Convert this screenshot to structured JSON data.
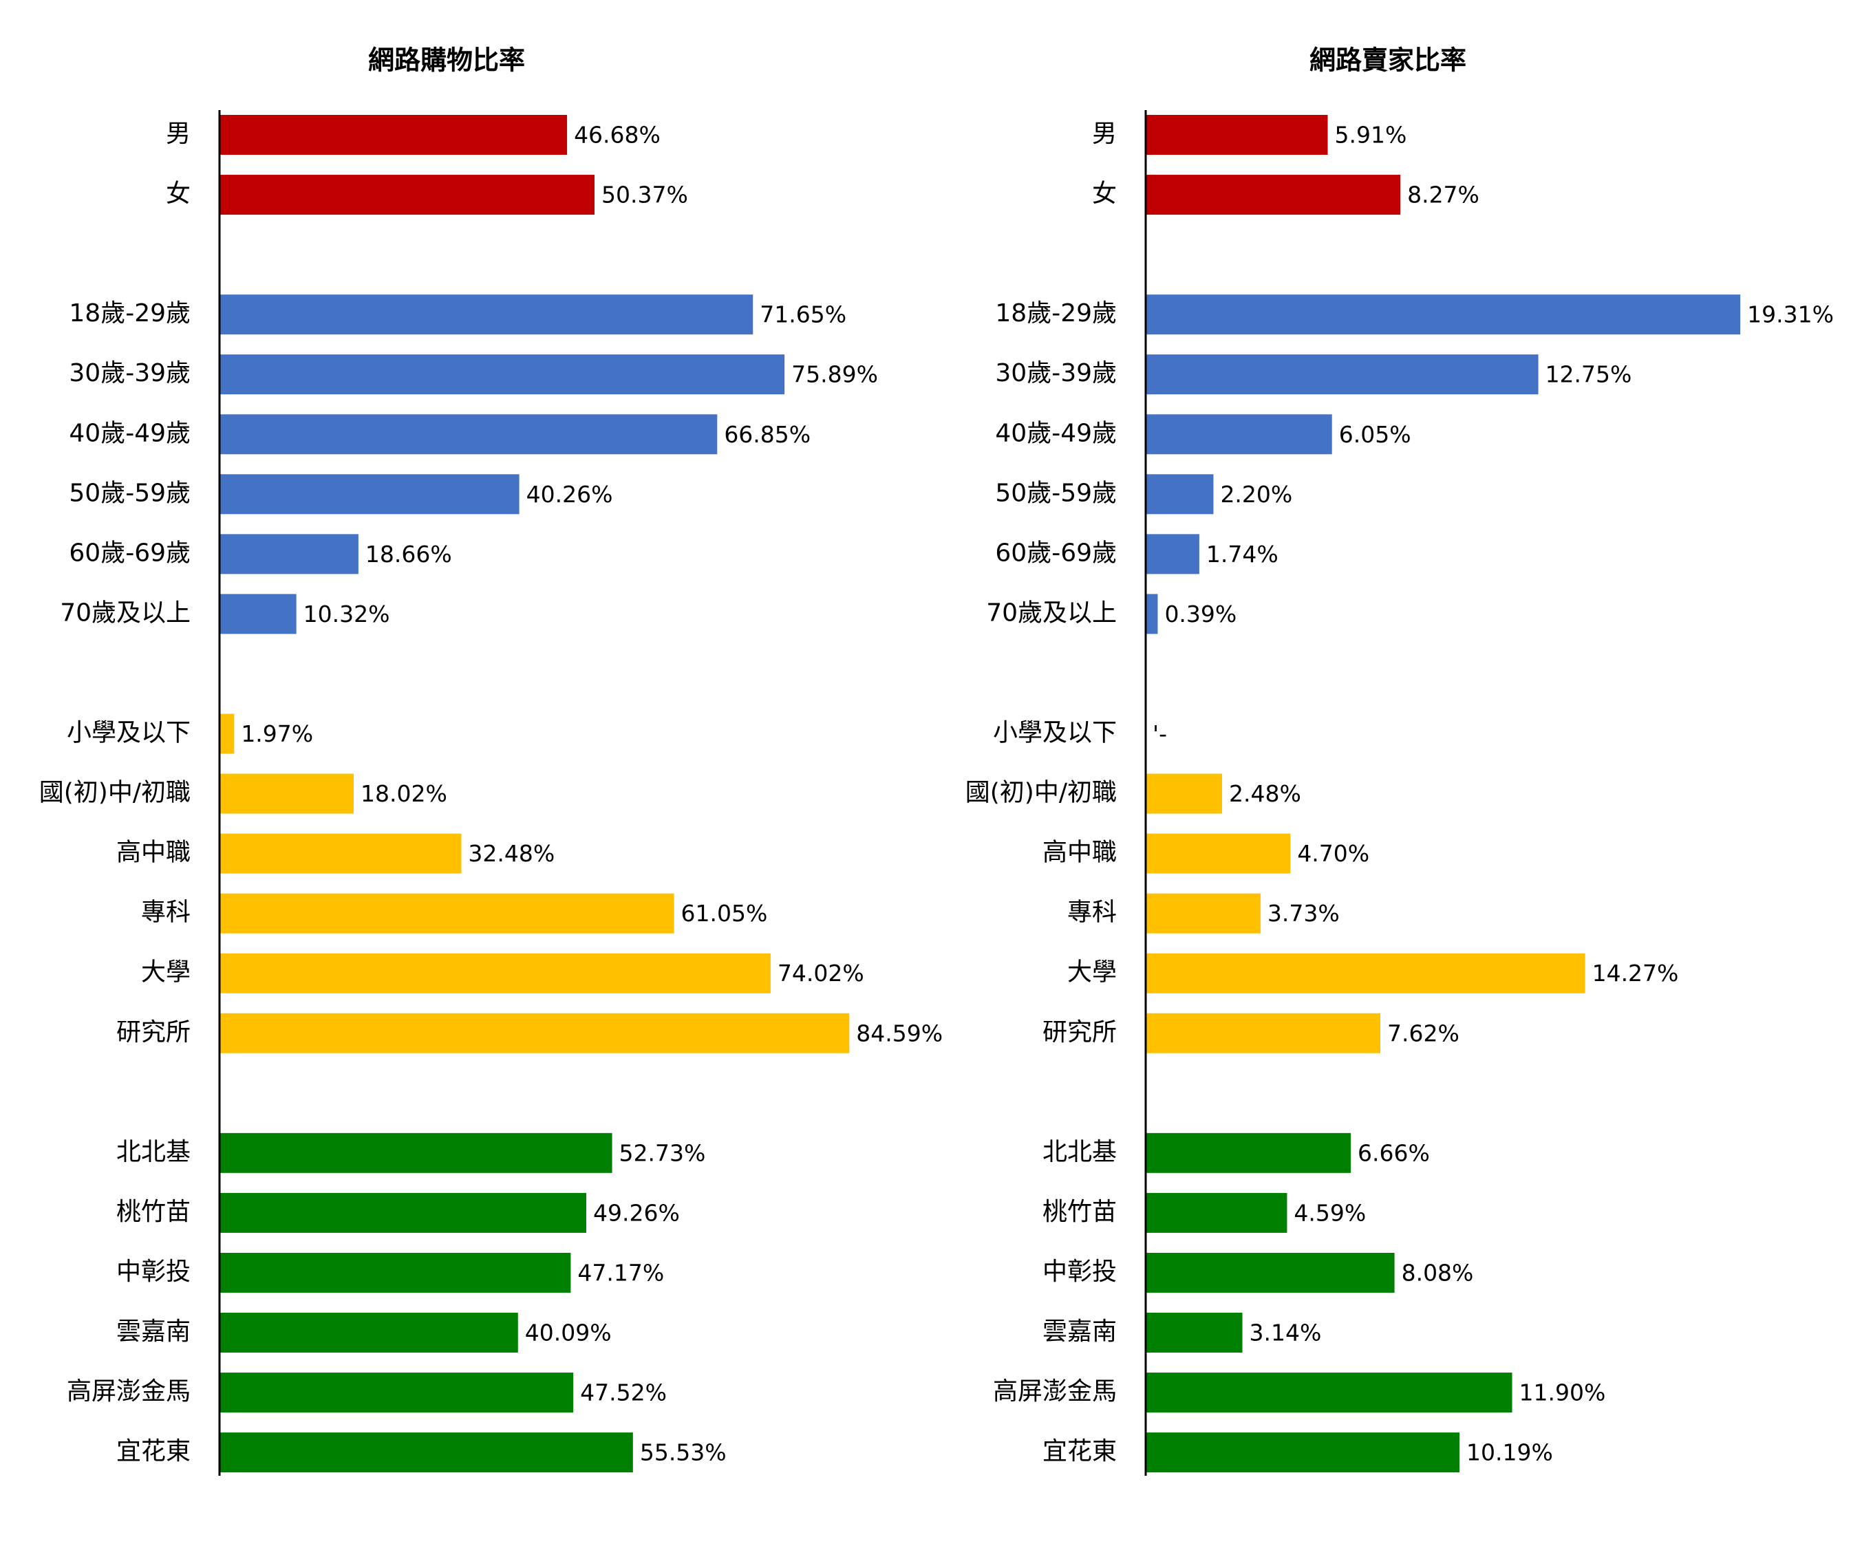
{
  "colors": {
    "gender": "#c00000",
    "age": "#4472c4",
    "education": "#ffc000",
    "region": "#008000",
    "axis": "#000000",
    "text": "#000000"
  },
  "chart_data": [
    {
      "type": "bar",
      "orientation": "horizontal",
      "title": "網路購物比率",
      "xlim": [
        0,
        100
      ],
      "grid": false,
      "groups": [
        {
          "name": "gender",
          "color_key": "gender",
          "categories": [
            "男",
            "女"
          ],
          "values": [
            46.68,
            50.37
          ],
          "labels": [
            "46.68%",
            "50.37%"
          ]
        },
        {
          "name": "age",
          "color_key": "age",
          "categories": [
            "18歲-29歲",
            "30歲-39歲",
            "40歲-49歲",
            "50歲-59歲",
            "60歲-69歲",
            "70歲及以上"
          ],
          "values": [
            71.65,
            75.89,
            66.85,
            40.26,
            18.66,
            10.32
          ],
          "labels": [
            "71.65%",
            "75.89%",
            "66.85%",
            "40.26%",
            "18.66%",
            "10.32%"
          ]
        },
        {
          "name": "education",
          "color_key": "education",
          "categories": [
            "小學及以下",
            "國(初)中/初職",
            "高中職",
            "專科",
            "大學",
            "研究所"
          ],
          "values": [
            1.97,
            18.02,
            32.48,
            61.05,
            74.02,
            84.59
          ],
          "labels": [
            "1.97%",
            "18.02%",
            "32.48%",
            "61.05%",
            "74.02%",
            "84.59%"
          ]
        },
        {
          "name": "region",
          "color_key": "region",
          "categories": [
            "北北基",
            "桃竹苗",
            "中彰投",
            "雲嘉南",
            "高屏澎金馬",
            "宜花東"
          ],
          "values": [
            52.73,
            49.26,
            47.17,
            40.09,
            47.52,
            55.53
          ],
          "labels": [
            "52.73%",
            "49.26%",
            "47.17%",
            "40.09%",
            "47.52%",
            "55.53%"
          ]
        }
      ]
    },
    {
      "type": "bar",
      "orientation": "horizontal",
      "title": "網路賣家比率",
      "xlim": [
        0,
        20
      ],
      "grid": false,
      "groups": [
        {
          "name": "gender",
          "color_key": "gender",
          "categories": [
            "男",
            "女"
          ],
          "values": [
            5.91,
            8.27
          ],
          "labels": [
            "5.91%",
            "8.27%"
          ]
        },
        {
          "name": "age",
          "color_key": "age",
          "categories": [
            "18歲-29歲",
            "30歲-39歲",
            "40歲-49歲",
            "50歲-59歲",
            "60歲-69歲",
            "70歲及以上"
          ],
          "values": [
            19.31,
            12.75,
            6.05,
            2.2,
            1.74,
            0.39
          ],
          "labels": [
            "19.31%",
            "12.75%",
            "6.05%",
            "2.20%",
            "1.74%",
            "0.39%"
          ]
        },
        {
          "name": "education",
          "color_key": "education",
          "categories": [
            "小學及以下",
            "國(初)中/初職",
            "高中職",
            "專科",
            "大學",
            "研究所"
          ],
          "values": [
            null,
            2.48,
            4.7,
            3.73,
            14.27,
            7.62
          ],
          "labels": [
            "'-",
            "2.48%",
            "4.70%",
            "3.73%",
            "14.27%",
            "7.62%"
          ]
        },
        {
          "name": "region",
          "color_key": "region",
          "categories": [
            "北北基",
            "桃竹苗",
            "中彰投",
            "雲嘉南",
            "高屏澎金馬",
            "宜花東"
          ],
          "values": [
            6.66,
            4.59,
            8.08,
            3.14,
            11.9,
            10.19
          ],
          "labels": [
            "6.66%",
            "4.59%",
            "8.08%",
            "3.14%",
            "11.90%",
            "10.19%"
          ]
        }
      ]
    }
  ]
}
